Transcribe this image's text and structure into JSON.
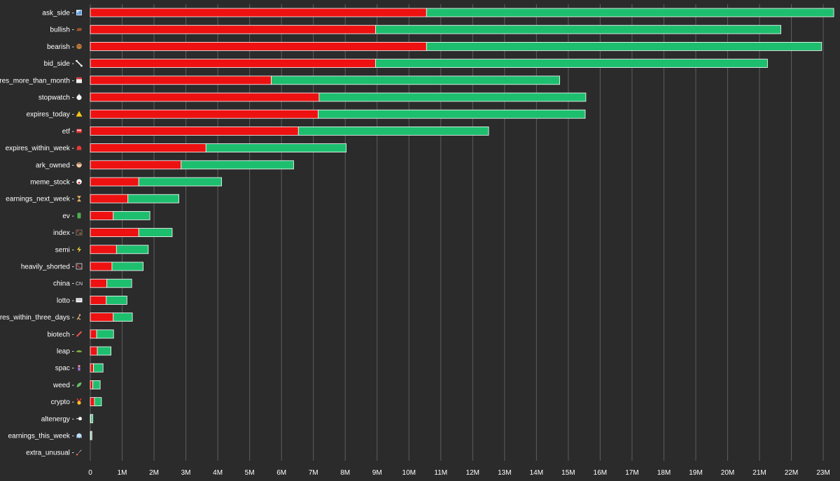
{
  "chart_data": {
    "type": "bar",
    "orientation": "horizontal",
    "stacked": true,
    "categories": [
      {
        "label": "ask_side",
        "icon": "bar-chart-icon"
      },
      {
        "label": "bullish",
        "icon": "bull-icon"
      },
      {
        "label": "bearish",
        "icon": "bear-icon"
      },
      {
        "label": "bid_side",
        "icon": "bone-icon"
      },
      {
        "label": "expires_more_than_month",
        "icon": "calendar-icon"
      },
      {
        "label": "stopwatch",
        "icon": "stopwatch-icon"
      },
      {
        "label": "expires_today",
        "icon": "warning-icon"
      },
      {
        "label": "etf",
        "icon": "bus-icon"
      },
      {
        "label": "expires_within_week",
        "icon": "siren-icon"
      },
      {
        "label": "ark_owned",
        "icon": "woman-icon"
      },
      {
        "label": "meme_stock",
        "icon": "face-icon"
      },
      {
        "label": "earnings_next_week",
        "icon": "hourglass-icon"
      },
      {
        "label": "ev",
        "icon": "battery-icon"
      },
      {
        "label": "index",
        "icon": "abacus-icon"
      },
      {
        "label": "semi",
        "icon": "lightning-icon"
      },
      {
        "label": "heavily_shorted",
        "icon": "chart-down-icon"
      },
      {
        "label": "china",
        "icon": "cn-flag-icon"
      },
      {
        "label": "lotto",
        "icon": "ticket-icon"
      },
      {
        "label": "expires_within_three_days",
        "icon": "runner-icon"
      },
      {
        "label": "biotech",
        "icon": "syringe-icon"
      },
      {
        "label": "leap",
        "icon": "lizard-icon"
      },
      {
        "label": "spac",
        "icon": "person-icon"
      },
      {
        "label": "weed",
        "icon": "leaf-icon"
      },
      {
        "label": "crypto",
        "icon": "medal-icon"
      },
      {
        "label": "altenergy",
        "icon": "wind-icon"
      },
      {
        "label": "earnings_this_week",
        "icon": "ghost-icon"
      },
      {
        "label": "extra_unusual",
        "icon": "rocket-icon"
      }
    ],
    "series": [
      {
        "color": "#ee1111",
        "values": [
          10.55,
          8.95,
          10.55,
          8.95,
          5.68,
          7.18,
          7.15,
          6.53,
          3.63,
          2.85,
          1.52,
          1.18,
          0.72,
          1.52,
          0.82,
          0.68,
          0.52,
          0.5,
          0.72,
          0.2,
          0.22,
          0.1,
          0.08,
          0.13,
          0.02,
          0.02,
          0.0
        ]
      },
      {
        "color": "#1dbf6f",
        "values": [
          12.78,
          12.72,
          12.4,
          12.3,
          9.05,
          8.37,
          8.38,
          5.97,
          4.4,
          3.53,
          2.6,
          1.6,
          1.15,
          1.05,
          1.0,
          0.98,
          0.78,
          0.65,
          0.6,
          0.53,
          0.43,
          0.3,
          0.23,
          0.22,
          0.06,
          0.03,
          0.0
        ]
      }
    ],
    "xticks": [
      "0",
      "1M",
      "2M",
      "3M",
      "4M",
      "5M",
      "6M",
      "7M",
      "8M",
      "9M",
      "10M",
      "11M",
      "12M",
      "13M",
      "14M",
      "15M",
      "16M",
      "17M",
      "18M",
      "19M",
      "20M",
      "21M",
      "22M",
      "23M"
    ],
    "xlim": [
      0,
      23.35
    ],
    "grid": true,
    "legend": "none",
    "background": "#2b2b2b",
    "gridColor": "#5e5e5e",
    "textColor": "#ffffff",
    "title": "",
    "xlabel": "",
    "ylabel": ""
  }
}
